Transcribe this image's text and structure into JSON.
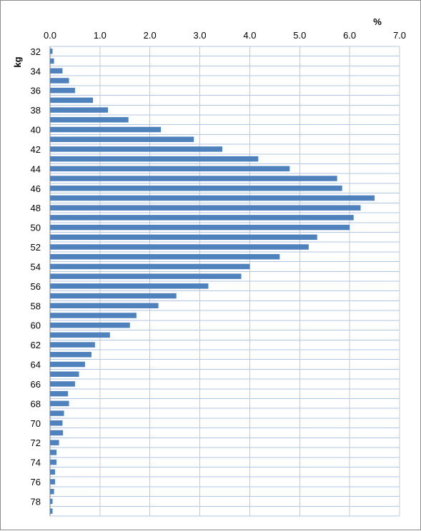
{
  "chart_data": {
    "type": "bar",
    "orientation": "horizontal",
    "x_unit": "%",
    "y_unit": "kg",
    "xlim": [
      0,
      7
    ],
    "x_ticks": [
      "0.0",
      "1.0",
      "2.0",
      "3.0",
      "4.0",
      "5.0",
      "6.0",
      "7.0"
    ],
    "x_axis_position": "top",
    "grid": true,
    "bar_color": "#4f81bd",
    "categories": [
      32,
      33,
      34,
      35,
      36,
      37,
      38,
      39,
      40,
      41,
      42,
      43,
      44,
      45,
      46,
      47,
      48,
      49,
      50,
      51,
      52,
      53,
      54,
      55,
      56,
      57,
      58,
      59,
      60,
      61,
      62,
      63,
      64,
      65,
      66,
      67,
      68,
      69,
      70,
      71,
      72,
      73,
      74,
      75,
      76,
      77,
      78,
      79
    ],
    "y_tick_labels": [
      "32",
      "34",
      "36",
      "38",
      "40",
      "42",
      "44",
      "46",
      "48",
      "50",
      "52",
      "54",
      "56",
      "58",
      "60",
      "62",
      "64",
      "66",
      "68",
      "70",
      "72",
      "74",
      "76",
      "78"
    ],
    "values": [
      0.05,
      0.08,
      0.25,
      0.38,
      0.5,
      0.86,
      1.16,
      1.57,
      2.22,
      2.88,
      3.45,
      4.17,
      4.8,
      5.75,
      5.85,
      6.5,
      6.22,
      6.08,
      6.0,
      5.35,
      5.18,
      4.6,
      4.0,
      3.83,
      3.17,
      2.53,
      2.17,
      1.73,
      1.6,
      1.2,
      0.9,
      0.83,
      0.7,
      0.58,
      0.5,
      0.36,
      0.38,
      0.28,
      0.25,
      0.26,
      0.18,
      0.13,
      0.13,
      0.1,
      0.1,
      0.08,
      0.05,
      0.05
    ]
  }
}
